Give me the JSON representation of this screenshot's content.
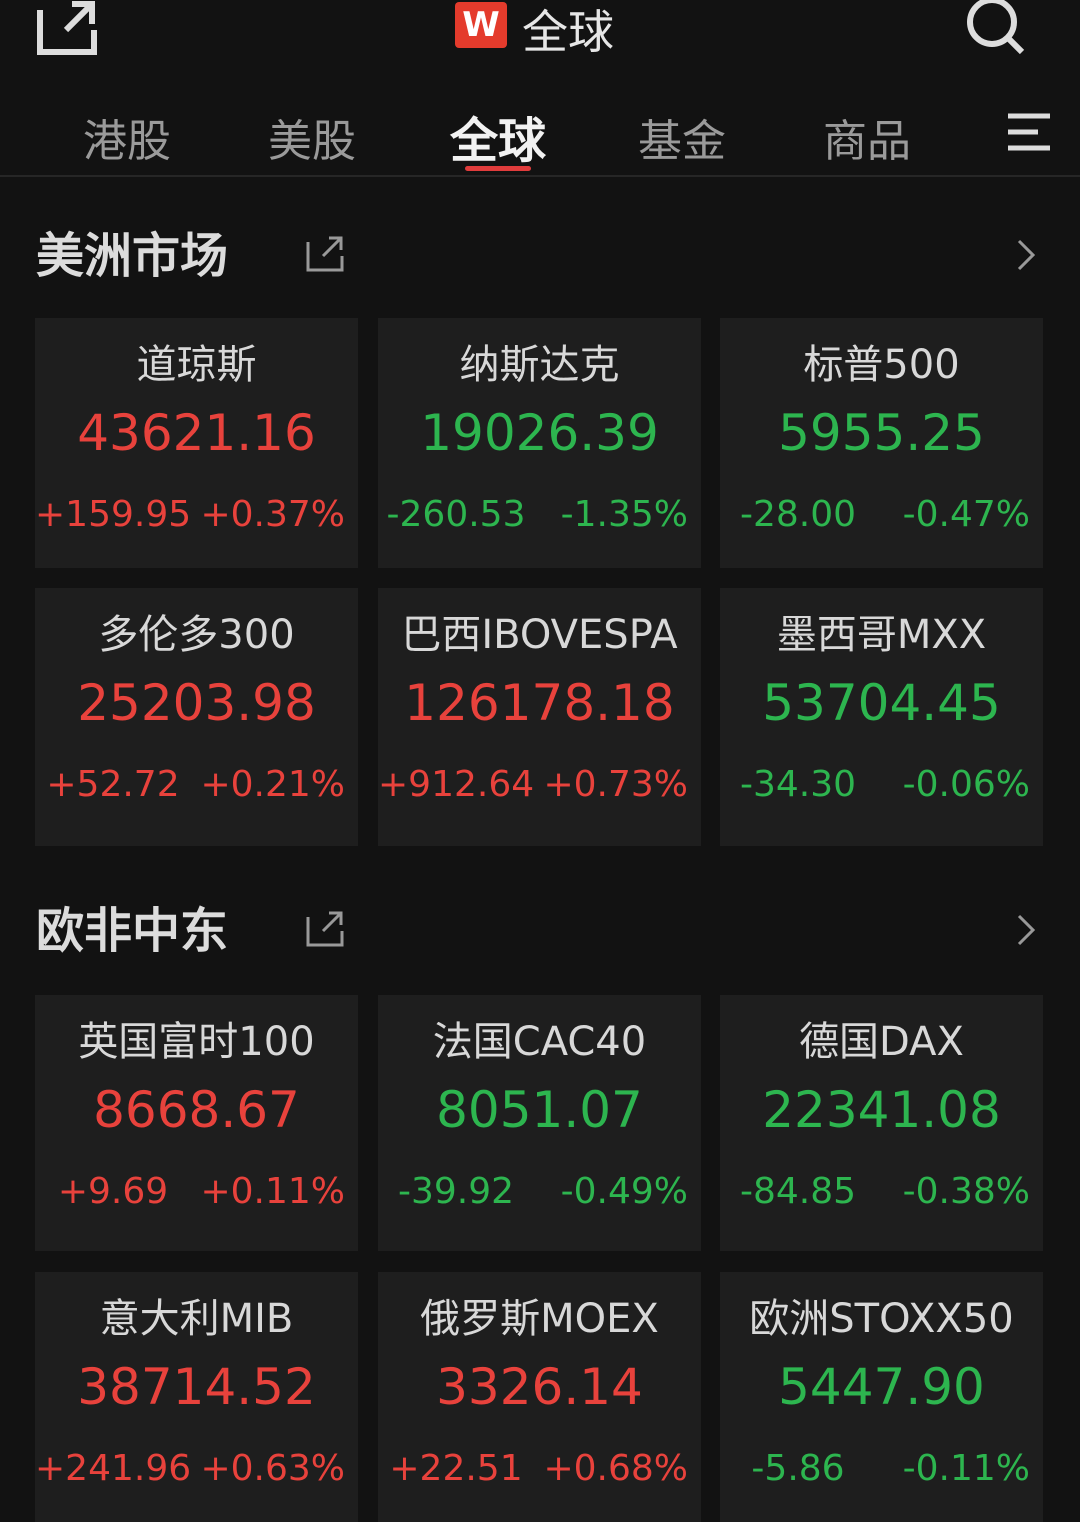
{
  "header": {
    "logo": "W",
    "title": "全球"
  },
  "tabs": {
    "items": [
      "港股",
      "美股",
      "全球",
      "基金",
      "商品"
    ],
    "active": 2
  },
  "sections": [
    {
      "title": "美洲市场",
      "cards": [
        {
          "name": "道琼斯",
          "price": "43621.16",
          "change": "+159.95",
          "percent": "+0.37%"
        },
        {
          "name": "纳斯达克",
          "price": "19026.39",
          "change": "-260.53",
          "percent": "-1.35%"
        },
        {
          "name": "标普500",
          "price": "5955.25",
          "change": "-28.00",
          "percent": "-0.47%"
        },
        {
          "name": "多伦多300",
          "price": "25203.98",
          "change": "+52.72",
          "percent": "+0.21%"
        },
        {
          "name": "巴西IBOVESPA",
          "price": "126178.18",
          "change": "+912.64",
          "percent": "+0.73%"
        },
        {
          "name": "墨西哥MXX",
          "price": "53704.45",
          "change": "-34.30",
          "percent": "-0.06%"
        }
      ]
    },
    {
      "title": "欧非中东",
      "cards": [
        {
          "name": "英国富时100",
          "price": "8668.67",
          "change": "+9.69",
          "percent": "+0.11%"
        },
        {
          "name": "法国CAC40",
          "price": "8051.07",
          "change": "-39.92",
          "percent": "-0.49%"
        },
        {
          "name": "德国DAX",
          "price": "22341.08",
          "change": "-84.85",
          "percent": "-0.38%"
        },
        {
          "name": "意大利MIB",
          "price": "38714.52",
          "change": "+241.96",
          "percent": "+0.63%"
        },
        {
          "name": "俄罗斯MOEX",
          "price": "3326.14",
          "change": "+22.51",
          "percent": "+0.68%"
        },
        {
          "name": "欧洲STOXX50",
          "price": "5447.90",
          "change": "-5.86",
          "percent": "-0.11%"
        }
      ]
    }
  ]
}
